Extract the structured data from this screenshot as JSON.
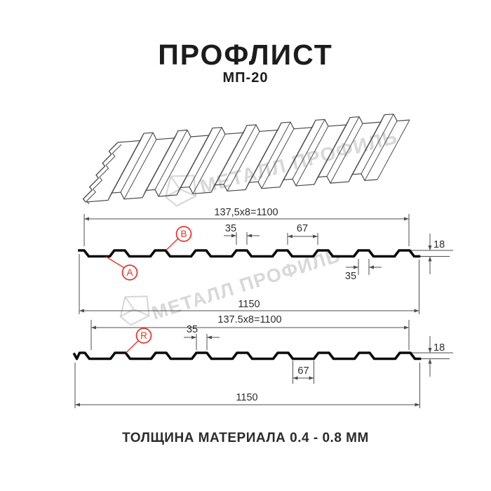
{
  "title": "ПРОФЛИСТ",
  "subtitle": "МП-20",
  "footer": "ТОЛЩИНА МАТЕРИАЛА 0.4 - 0.8 ММ",
  "watermark": {
    "text": "МЕТАЛЛ ПРОФИЛЬ"
  },
  "colors": {
    "accent_red": "#e63329",
    "dim_line": "#4d4d4d",
    "dim_text": "#2d2d2d",
    "profile": "#0b0b0b",
    "persp_line": "#434343",
    "watermark": "#d8d8d8"
  },
  "diagram1": {
    "module_dim": "137,5x8=1100",
    "rib_top_width": "35",
    "valley_width": "67",
    "height": "18",
    "bottom_rib_width": "35",
    "overall_width": "1150",
    "label_a": "A",
    "label_b": "B"
  },
  "diagram2": {
    "module_dim": "137.5x8=1100",
    "rib_top_width": "35",
    "height": "18",
    "valley_width": "67",
    "overall_width": "1150",
    "label_r": "R"
  }
}
